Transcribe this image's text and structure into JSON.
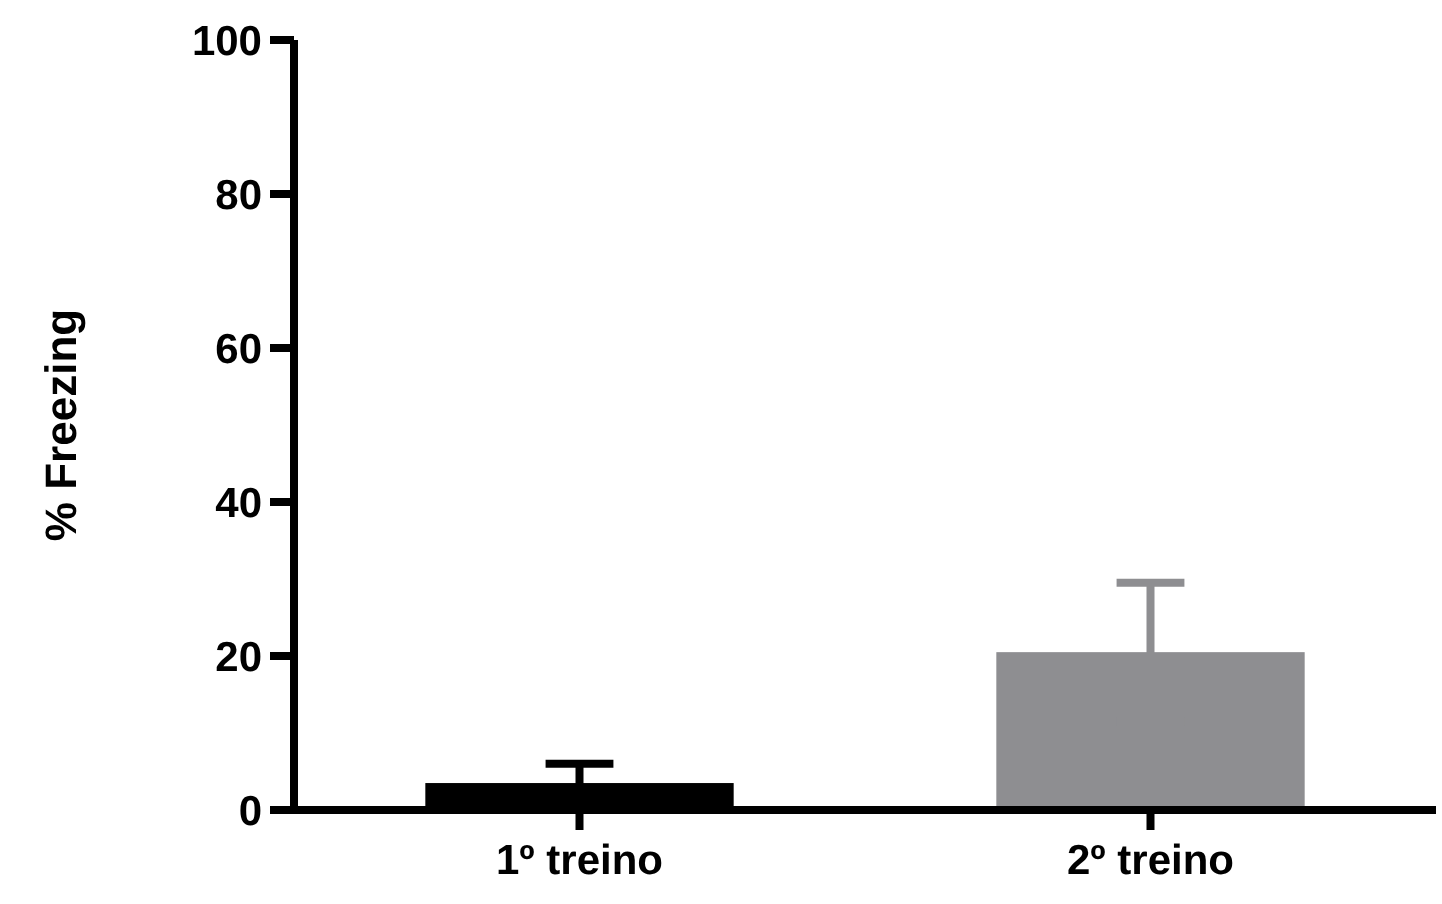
{
  "chart_data": {
    "type": "bar",
    "ylabel": "% Freezing",
    "categories": [
      "1º treino",
      "2º treino"
    ],
    "values": [
      3.5,
      20.5
    ],
    "colors": [
      "#000000",
      "#8e8e91"
    ],
    "errors": [
      2.5,
      9
    ],
    "ylim": [
      0,
      100
    ],
    "yticks": [
      0,
      20,
      40,
      60,
      80,
      100
    ],
    "grid": false
  }
}
